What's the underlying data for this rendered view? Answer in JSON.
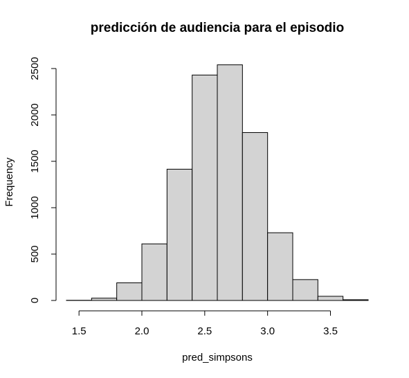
{
  "chart_data": {
    "type": "bar",
    "title": "predicción de audiencia para el episodio",
    "xlabel": "pred_simpsons",
    "ylabel": "Frequency",
    "bins": [
      {
        "start": 1.4,
        "end": 1.6,
        "count": 2
      },
      {
        "start": 1.6,
        "end": 1.8,
        "count": 25
      },
      {
        "start": 1.8,
        "end": 2.0,
        "count": 190
      },
      {
        "start": 2.0,
        "end": 2.2,
        "count": 610
      },
      {
        "start": 2.2,
        "end": 2.4,
        "count": 1415
      },
      {
        "start": 2.4,
        "end": 2.6,
        "count": 2430
      },
      {
        "start": 2.6,
        "end": 2.8,
        "count": 2540
      },
      {
        "start": 2.8,
        "end": 3.0,
        "count": 1810
      },
      {
        "start": 3.0,
        "end": 3.2,
        "count": 730
      },
      {
        "start": 3.2,
        "end": 3.4,
        "count": 225
      },
      {
        "start": 3.4,
        "end": 3.6,
        "count": 45
      },
      {
        "start": 3.6,
        "end": 3.8,
        "count": 8
      }
    ],
    "xticks": [
      {
        "value": 1.5,
        "label": "1.5"
      },
      {
        "value": 2.0,
        "label": "2.0"
      },
      {
        "value": 2.5,
        "label": "2.5"
      },
      {
        "value": 3.0,
        "label": "3.0"
      },
      {
        "value": 3.5,
        "label": "3.5"
      }
    ],
    "yticks": [
      {
        "value": 0,
        "label": "0"
      },
      {
        "value": 500,
        "label": "500"
      },
      {
        "value": 1000,
        "label": "1000"
      },
      {
        "value": 1500,
        "label": "1500"
      },
      {
        "value": 2000,
        "label": "2000"
      },
      {
        "value": 2500,
        "label": "2500"
      }
    ],
    "xlim": [
      1.4,
      3.8
    ],
    "ylim": [
      0,
      2500
    ],
    "grid": false,
    "legend": "none",
    "colors": {
      "bar_fill": "#d3d3d3",
      "bar_stroke": "#000000"
    }
  }
}
